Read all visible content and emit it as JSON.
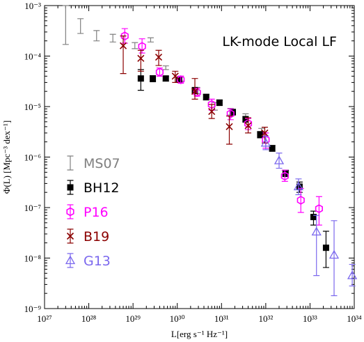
{
  "chart_data": {
    "type": "scatter",
    "title": "LK-mode Local LF",
    "xlabel": "L[erg s⁻¹ Hz⁻¹]",
    "ylabel": "Φ(L) [Mpc⁻³ dex⁻¹]",
    "x_scale": "log",
    "y_scale": "log",
    "xlim": [
      1e+27,
      1e+34
    ],
    "ylim": [
      1e-09,
      0.001
    ],
    "x_ticks": [
      {
        "value": 1e+27,
        "label": "10²⁷"
      },
      {
        "value": 1e+28,
        "label": "10²⁸"
      },
      {
        "value": 1e+29,
        "label": "10²⁹"
      },
      {
        "value": 1e+30,
        "label": "10³⁰"
      },
      {
        "value": 1e+31,
        "label": "10³¹"
      },
      {
        "value": 1e+32,
        "label": "10³²"
      },
      {
        "value": 1e+33,
        "label": "10³³"
      },
      {
        "value": 1e+34,
        "label": "10³⁴"
      }
    ],
    "y_ticks": [
      {
        "value": 1e-09,
        "label": "10⁻⁹"
      },
      {
        "value": 1e-08,
        "label": "10⁻⁸"
      },
      {
        "value": 1e-07,
        "label": "10⁻⁷"
      },
      {
        "value": 1e-06,
        "label": "10⁻⁶"
      },
      {
        "value": 1e-05,
        "label": "10⁻⁵"
      },
      {
        "value": 0.0001,
        "label": "10⁻⁴"
      },
      {
        "value": 0.001,
        "label": "10⁻³"
      }
    ],
    "legend_position": "left",
    "series": [
      {
        "name": "MS07",
        "color": "#808080",
        "marker": "none",
        "points": [
          {
            "x": 3e+27,
            "y": 0.00035,
            "lo": 0.00017,
            "hi": 0.001
          },
          {
            "x": 6.5e+27,
            "y": 0.00038,
            "lo": 0.00028,
            "hi": 0.00055
          },
          {
            "x": 1.5e+28,
            "y": 0.00025,
            "lo": 0.0002,
            "hi": 0.00032
          },
          {
            "x": 3.5e+28,
            "y": 0.00023,
            "lo": 0.00019,
            "hi": 0.00027
          },
          {
            "x": 1.1e+29,
            "y": 0.00016,
            "lo": 0.00014,
            "hi": 0.000185
          },
          {
            "x": 2.5e+29,
            "y": 0.00021,
            "lo": 0.00019,
            "hi": 0.00023
          },
          {
            "x": 5.5e+29,
            "y": 5.9e-05,
            "lo": 5.4e-05,
            "hi": 6.4e-05
          },
          {
            "x": 1.2e+30,
            "y": 3.6e-05,
            "lo": 3.2e-05,
            "hi": 4e-05
          },
          {
            "x": 2.8e+30,
            "y": 2.1e-05,
            "lo": 1.8e-05,
            "hi": 2.4e-05
          },
          {
            "x": 7e+30,
            "y": 1e-05,
            "lo": 8.5e-06,
            "hi": 1.2e-05
          },
          {
            "x": 1.6e+31,
            "y": 8e-06,
            "lo": 6.8e-06,
            "hi": 9.2e-06
          },
          {
            "x": 3.5e+31,
            "y": 6e-06,
            "lo": 5e-06,
            "hi": 7.2e-06
          },
          {
            "x": 8e+31,
            "y": 3.1e-06,
            "lo": 2.6e-06,
            "hi": 3.7e-06
          }
        ]
      },
      {
        "name": "BH12",
        "color": "#000000",
        "marker": "square",
        "points": [
          {
            "x": 1.5e+29,
            "y": 3.6e-05,
            "lo": 2.1e-05,
            "hi": 5.4e-05
          },
          {
            "x": 2.8e+29,
            "y": 3.6e-05,
            "lo": 3.1e-05,
            "hi": 4.1e-05
          },
          {
            "x": 5.5e+29,
            "y": 3.6e-05,
            "lo": 3.2e-05,
            "hi": 4e-05
          },
          {
            "x": 1.1e+30,
            "y": 3.4e-05,
            "lo": 3.1e-05,
            "hi": 3.8e-05
          },
          {
            "x": 2.5e+30,
            "y": 2.1e-05,
            "lo": 1.8e-05,
            "hi": 2.4e-05
          },
          {
            "x": 4.5e+30,
            "y": 1.55e-05,
            "lo": 1.35e-05,
            "hi": 1.75e-05
          },
          {
            "x": 9e+30,
            "y": 1.2e-05,
            "lo": 1.05e-05,
            "hi": 1.35e-05
          },
          {
            "x": 1.8e+31,
            "y": 7.8e-06,
            "lo": 6.8e-06,
            "hi": 8.8e-06
          },
          {
            "x": 3.5e+31,
            "y": 5.6e-06,
            "lo": 4.9e-06,
            "hi": 6.4e-06
          },
          {
            "x": 7.5e+31,
            "y": 2.8e-06,
            "lo": 2.4e-06,
            "hi": 3.2e-06
          },
          {
            "x": 1.4e+32,
            "y": 1.5e-06,
            "lo": 1.3e-06,
            "hi": 1.7e-06
          },
          {
            "x": 2.8e+32,
            "y": 4.8e-07,
            "lo": 4.1e-07,
            "hi": 5.5e-07
          },
          {
            "x": 5.8e+32,
            "y": 2.6e-07,
            "lo": 2e-07,
            "hi": 3.2e-07
          },
          {
            "x": 1.2e+33,
            "y": 6.5e-08,
            "lo": 4.5e-08,
            "hi": 8.5e-08
          },
          {
            "x": 2.3e+33,
            "y": 1.6e-08,
            "lo": 6.5e-09,
            "hi": 3.4e-08
          }
        ]
      },
      {
        "name": "P16",
        "color": "#ff00ff",
        "marker": "circle",
        "points": [
          {
            "x": 6.5e+28,
            "y": 0.00025,
            "lo": 0.00018,
            "hi": 0.00035
          },
          {
            "x": 1.6e+29,
            "y": 0.000155,
            "lo": 0.000115,
            "hi": 0.00022
          },
          {
            "x": 4e+29,
            "y": 4.8e-05,
            "lo": 4e-05,
            "hi": 5.8e-05
          },
          {
            "x": 1.2e+30,
            "y": 3.4e-05,
            "lo": 2.9e-05,
            "hi": 4e-05
          },
          {
            "x": 2.8e+30,
            "y": 1.9e-05,
            "lo": 1.6e-05,
            "hi": 2.3e-05
          },
          {
            "x": 6e+30,
            "y": 1.1e-05,
            "lo": 8.5e-06,
            "hi": 1.4e-05
          },
          {
            "x": 1.6e+31,
            "y": 7.2e-06,
            "lo": 5.5e-06,
            "hi": 9e-06
          },
          {
            "x": 4e+31,
            "y": 4.6e-06,
            "lo": 3.5e-06,
            "hi": 5.8e-06
          },
          {
            "x": 1e+32,
            "y": 2.2e-06,
            "lo": 1.5e-06,
            "hi": 3e-06
          },
          {
            "x": 2.7e+32,
            "y": 4.2e-07,
            "lo": 3.3e-07,
            "hi": 5.5e-07
          },
          {
            "x": 6.2e+32,
            "y": 1.4e-07,
            "lo": 8e-08,
            "hi": 2.4e-07
          },
          {
            "x": 1.6e+33,
            "y": 9.5e-08,
            "lo": 4.5e-08,
            "hi": 1.65e-07
          }
        ]
      },
      {
        "name": "B19",
        "color": "#8b0000",
        "marker": "cross",
        "points": [
          {
            "x": 6e+28,
            "y": 0.00016,
            "lo": 4.5e-05,
            "hi": 0.00025
          },
          {
            "x": 1.5e+29,
            "y": 9e-05,
            "lo": 5e-05,
            "hi": 0.00013
          },
          {
            "x": 3.8e+29,
            "y": 9.5e-05,
            "lo": 6.5e-05,
            "hi": 0.00013
          },
          {
            "x": 9e+29,
            "y": 4e-05,
            "lo": 3e-05,
            "hi": 5e-05
          },
          {
            "x": 2.5e+30,
            "y": 2e-05,
            "lo": 1.4e-05,
            "hi": 3.6e-05
          },
          {
            "x": 6e+30,
            "y": 8e-06,
            "lo": 5.8e-06,
            "hi": 1.1e-05
          },
          {
            "x": 1.5e+31,
            "y": 4e-06,
            "lo": 1.8e-06,
            "hi": 6.5e-06
          },
          {
            "x": 4e+31,
            "y": 4.2e-06,
            "lo": 3e-06,
            "hi": 6e-06
          },
          {
            "x": 9.5e+31,
            "y": 3e-06,
            "lo": 1.9e-06,
            "hi": 3.9e-06
          }
        ]
      },
      {
        "name": "G13",
        "color": "#7b68ee",
        "marker": "triangle",
        "points": [
          {
            "x": 1e+32,
            "y": 1.9e-06,
            "lo": 1.4e-06,
            "hi": 2.6e-06
          },
          {
            "x": 2e+32,
            "y": 8.5e-07,
            "lo": 6e-07,
            "hi": 1.2e-06
          },
          {
            "x": 5.5e+32,
            "y": 2.6e-07,
            "lo": 1.8e-07,
            "hi": 3.7e-07
          },
          {
            "x": 1.4e+33,
            "y": 3.3e-08,
            "lo": 4.5e-09,
            "hi": 7e-08
          },
          {
            "x": 3.5e+33,
            "y": 1.15e-08,
            "lo": 1.8e-09,
            "hi": 5.5e-08
          },
          {
            "x": 9e+33,
            "y": 4.5e-09,
            "lo": 2.8e-09,
            "hi": 7.5e-09
          }
        ]
      }
    ]
  }
}
